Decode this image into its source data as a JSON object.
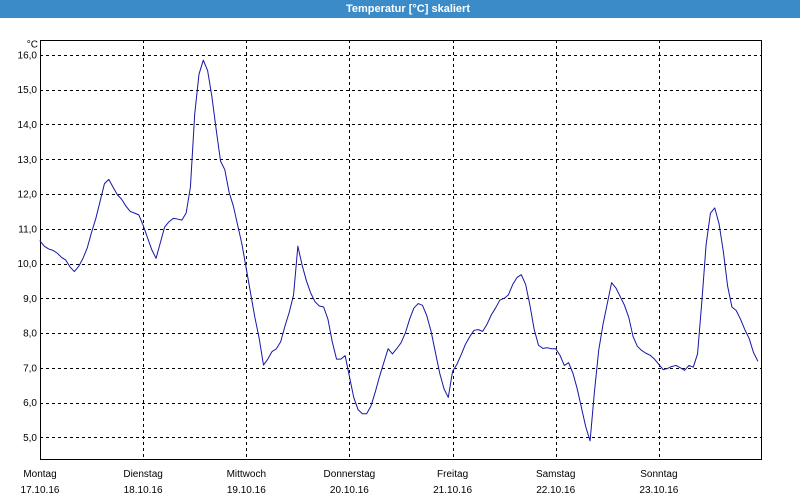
{
  "window": {
    "title_bar_color": "#3b8bc9",
    "title_text_color": "#ffffff"
  },
  "chart_data": {
    "type": "line",
    "title": "Temperatur [°C] skaliert",
    "ylabel": "°C",
    "ylim": [
      4.35,
      16.43
    ],
    "xlim": [
      "17.10.16 00:00",
      "24.10.16 00:00"
    ],
    "yticks": [
      "16,0",
      "15,0",
      "14,0",
      "13,0",
      "12,0",
      "11,0",
      "10,0",
      "9,0",
      "8,0",
      "7,0",
      "6,0",
      "5,0"
    ],
    "xticks": [
      {
        "day": "Montag",
        "date": "17.10.16"
      },
      {
        "day": "Dienstag",
        "date": "18.10.16"
      },
      {
        "day": "Mittwoch",
        "date": "19.10.16"
      },
      {
        "day": "Donnerstag",
        "date": "20.10.16"
      },
      {
        "day": "Freitag",
        "date": "21.10.16"
      },
      {
        "day": "Samstag",
        "date": "22.10.16"
      },
      {
        "day": "Sonntag",
        "date": "23.10.16"
      }
    ],
    "grid": true,
    "grid_color": "#000000",
    "line_color": "#1616a6",
    "x": [
      "17.10.16 00:00",
      "17.10.16 01:00",
      "17.10.16 02:00",
      "17.10.16 03:00",
      "17.10.16 04:00",
      "17.10.16 05:00",
      "17.10.16 06:00",
      "17.10.16 07:00",
      "17.10.16 08:00",
      "17.10.16 09:00",
      "17.10.16 10:00",
      "17.10.16 11:00",
      "17.10.16 12:00",
      "17.10.16 13:00",
      "17.10.16 14:00",
      "17.10.16 15:00",
      "17.10.16 16:00",
      "17.10.16 17:00",
      "17.10.16 18:00",
      "17.10.16 19:00",
      "17.10.16 20:00",
      "17.10.16 21:00",
      "17.10.16 22:00",
      "17.10.16 23:00",
      "18.10.16 00:00",
      "18.10.16 01:00",
      "18.10.16 02:00",
      "18.10.16 03:00",
      "18.10.16 04:00",
      "18.10.16 05:00",
      "18.10.16 06:00",
      "18.10.16 07:00",
      "18.10.16 08:00",
      "18.10.16 09:00",
      "18.10.16 10:00",
      "18.10.16 11:00",
      "18.10.16 12:00",
      "18.10.16 13:00",
      "18.10.16 14:00",
      "18.10.16 15:00",
      "18.10.16 16:00",
      "18.10.16 17:00",
      "18.10.16 18:00",
      "18.10.16 19:00",
      "18.10.16 20:00",
      "18.10.16 21:00",
      "18.10.16 22:00",
      "18.10.16 23:00",
      "19.10.16 00:00",
      "19.10.16 01:00",
      "19.10.16 02:00",
      "19.10.16 03:00",
      "19.10.16 04:00",
      "19.10.16 05:00",
      "19.10.16 06:00",
      "19.10.16 07:00",
      "19.10.16 08:00",
      "19.10.16 09:00",
      "19.10.16 10:00",
      "19.10.16 11:00",
      "19.10.16 12:00",
      "19.10.16 13:00",
      "19.10.16 14:00",
      "19.10.16 15:00",
      "19.10.16 16:00",
      "19.10.16 17:00",
      "19.10.16 18:00",
      "19.10.16 19:00",
      "19.10.16 20:00",
      "19.10.16 21:00",
      "19.10.16 22:00",
      "19.10.16 23:00",
      "20.10.16 00:00",
      "20.10.16 01:00",
      "20.10.16 02:00",
      "20.10.16 03:00",
      "20.10.16 04:00",
      "20.10.16 05:00",
      "20.10.16 06:00",
      "20.10.16 07:00",
      "20.10.16 08:00",
      "20.10.16 09:00",
      "20.10.16 10:00",
      "20.10.16 11:00",
      "20.10.16 12:00",
      "20.10.16 13:00",
      "20.10.16 14:00",
      "20.10.16 15:00",
      "20.10.16 16:00",
      "20.10.16 17:00",
      "20.10.16 18:00",
      "20.10.16 19:00",
      "20.10.16 20:00",
      "20.10.16 21:00",
      "20.10.16 22:00",
      "20.10.16 23:00",
      "21.10.16 00:00",
      "21.10.16 01:00",
      "21.10.16 02:00",
      "21.10.16 03:00",
      "21.10.16 04:00",
      "21.10.16 05:00",
      "21.10.16 06:00",
      "21.10.16 07:00",
      "21.10.16 08:00",
      "21.10.16 09:00",
      "21.10.16 10:00",
      "21.10.16 11:00",
      "21.10.16 12:00",
      "21.10.16 13:00",
      "21.10.16 14:00",
      "21.10.16 15:00",
      "21.10.16 16:00",
      "21.10.16 17:00",
      "21.10.16 18:00",
      "21.10.16 19:00",
      "21.10.16 20:00",
      "21.10.16 21:00",
      "21.10.16 22:00",
      "21.10.16 23:00",
      "22.10.16 00:00",
      "22.10.16 01:00",
      "22.10.16 02:00",
      "22.10.16 03:00",
      "22.10.16 04:00",
      "22.10.16 05:00",
      "22.10.16 06:00",
      "22.10.16 07:00",
      "22.10.16 08:00",
      "22.10.16 09:00",
      "22.10.16 10:00",
      "22.10.16 11:00",
      "22.10.16 12:00",
      "22.10.16 13:00",
      "22.10.16 14:00",
      "22.10.16 15:00",
      "22.10.16 16:00",
      "22.10.16 17:00",
      "22.10.16 18:00",
      "22.10.16 19:00",
      "22.10.16 20:00",
      "22.10.16 21:00",
      "22.10.16 22:00",
      "22.10.16 23:00",
      "23.10.16 00:00",
      "23.10.16 01:00",
      "23.10.16 02:00",
      "23.10.16 03:00",
      "23.10.16 04:00",
      "23.10.16 05:00",
      "23.10.16 06:00",
      "23.10.16 07:00",
      "23.10.16 08:00",
      "23.10.16 09:00",
      "23.10.16 10:00",
      "23.10.16 11:00",
      "23.10.16 12:00",
      "23.10.16 13:00",
      "23.10.16 14:00",
      "23.10.16 15:00",
      "23.10.16 16:00",
      "23.10.16 17:00",
      "23.10.16 18:00",
      "23.10.16 19:00",
      "23.10.16 20:00",
      "23.10.16 21:00",
      "23.10.16 22:00",
      "23.10.16 23:00"
    ],
    "series": [
      {
        "values": [
          10.65,
          10.5,
          10.42,
          10.38,
          10.3,
          10.18,
          10.1,
          9.9,
          9.77,
          9.92,
          10.15,
          10.45,
          10.9,
          11.3,
          11.8,
          12.3,
          12.42,
          12.2,
          11.98,
          11.85,
          11.65,
          11.5,
          11.45,
          11.4,
          11.1,
          10.75,
          10.4,
          10.15,
          10.6,
          11.05,
          11.2,
          11.3,
          11.28,
          11.25,
          11.45,
          12.2,
          14.3,
          15.45,
          15.85,
          15.55,
          14.8,
          13.85,
          12.95,
          12.7,
          12.05,
          11.65,
          11.1,
          10.55,
          9.85,
          9.15,
          8.45,
          7.85,
          7.08,
          7.25,
          7.47,
          7.55,
          7.75,
          8.2,
          8.6,
          9.1,
          10.5,
          9.95,
          9.5,
          9.15,
          8.9,
          8.78,
          8.75,
          8.4,
          7.75,
          7.25,
          7.25,
          7.35,
          6.75,
          6.15,
          5.8,
          5.68,
          5.68,
          5.9,
          6.3,
          6.75,
          7.15,
          7.55,
          7.4,
          7.55,
          7.72,
          8.0,
          8.4,
          8.72,
          8.85,
          8.8,
          8.5,
          8.05,
          7.45,
          6.85,
          6.4,
          6.15,
          6.9,
          7.1,
          7.38,
          7.68,
          7.9,
          8.08,
          8.1,
          8.05,
          8.25,
          8.52,
          8.72,
          8.95,
          9.0,
          9.1,
          9.4,
          9.6,
          9.68,
          9.4,
          8.8,
          8.1,
          7.65,
          7.56,
          7.58,
          7.55,
          7.55,
          7.36,
          7.07,
          7.15,
          6.85,
          6.4,
          5.85,
          5.3,
          4.9,
          6.3,
          7.5,
          8.25,
          8.85,
          9.45,
          9.3,
          9.05,
          8.8,
          8.45,
          7.9,
          7.62,
          7.5,
          7.42,
          7.36,
          7.25,
          7.1,
          6.95,
          6.98,
          7.04,
          7.07,
          7.0,
          6.93,
          7.07,
          7.02,
          7.4,
          8.9,
          10.55,
          11.45,
          11.6,
          11.15,
          10.35,
          9.35,
          8.75,
          8.65,
          8.4,
          8.1,
          7.85,
          7.45,
          7.2
        ]
      }
    ]
  }
}
